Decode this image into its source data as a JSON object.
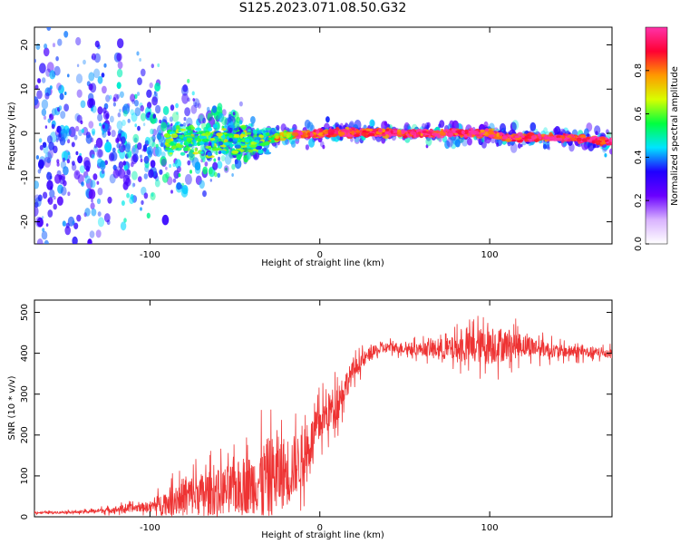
{
  "title": "S125.2023.071.08.50.G32",
  "chart_data": [
    {
      "type": "heatmap",
      "xlabel": "Height of straight line (km)",
      "ylabel": "Frequency (Hz)",
      "xlim": [
        -168,
        172
      ],
      "ylim": [
        -25,
        24
      ],
      "x_ticks": [
        -100,
        0,
        100
      ],
      "y_ticks": [
        -20,
        -10,
        0,
        10,
        20
      ],
      "colorbar": {
        "label": "Normalized spectral amplitude",
        "range": [
          0,
          1
        ],
        "ticks": [
          0.0,
          0.2,
          0.4,
          0.6,
          0.8
        ],
        "colormap": [
          "#ffffff",
          "#d9b3ff",
          "#6a00ff",
          "#2000ff",
          "#00e5ff",
          "#00ff40",
          "#d8ff00",
          "#ff9900",
          "#ff0033",
          "#ff33aa"
        ]
      },
      "ridge": {
        "description": "narrow high-amplitude band near 0 Hz",
        "x": [
          -35,
          -20,
          0,
          20,
          60,
          100,
          110,
          150,
          172
        ],
        "frequency": [
          -1.5,
          -0.5,
          0.0,
          0.2,
          0.0,
          0.0,
          -1.0,
          -1.0,
          -2.0
        ]
      }
    },
    {
      "type": "line",
      "xlabel": "Height of straight line (km)",
      "ylabel": "SNR (10 * v/v)",
      "xlim": [
        -168,
        172
      ],
      "ylim": [
        0,
        530
      ],
      "x_ticks": [
        -100,
        0,
        100
      ],
      "y_ticks": [
        0,
        100,
        200,
        300,
        400,
        500
      ],
      "color": "#ee3333",
      "series": [
        {
          "trend_x": [
            -168,
            -140,
            -120,
            -100,
            -90,
            -80,
            -60,
            -40,
            -30,
            -20,
            -10,
            0,
            10,
            20,
            30,
            40,
            60,
            80,
            100,
            120,
            140,
            172
          ],
          "trend_y": [
            10,
            12,
            18,
            25,
            35,
            50,
            60,
            80,
            100,
            110,
            140,
            230,
            280,
            360,
            400,
            415,
            410,
            410,
            420,
            420,
            405,
            400
          ],
          "noise": [
            3,
            4,
            10,
            15,
            40,
            60,
            70,
            90,
            120,
            110,
            80,
            60,
            60,
            30,
            20,
            15,
            20,
            40,
            60,
            35,
            20,
            15
          ]
        }
      ]
    }
  ]
}
